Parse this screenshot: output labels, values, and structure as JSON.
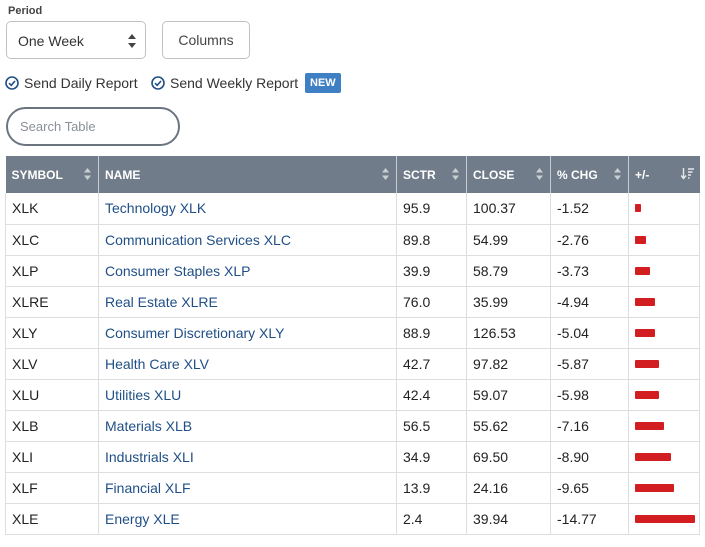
{
  "controls": {
    "period_label": "Period",
    "period_value": "One Week",
    "columns_label": "Columns",
    "send_daily_label": "Send Daily Report",
    "send_weekly_label": "Send Weekly Report",
    "new_badge": "NEW",
    "search_placeholder": "Search Table"
  },
  "colors": {
    "header_bg": "#707c89",
    "link": "#1f4f86",
    "bar": "#d31e21",
    "badge": "#3f7fc4"
  },
  "table": {
    "headers": {
      "symbol": "SYMBOL",
      "name": "NAME",
      "sctr": "SCTR",
      "close": "CLOSE",
      "pct_chg": "% CHG",
      "plus_minus": "+/-"
    },
    "rows": [
      {
        "symbol": "XLK",
        "name": "Technology XLK",
        "sctr": "95.9",
        "close": "100.37",
        "pct_chg": "-1.52",
        "change": -1.52
      },
      {
        "symbol": "XLC",
        "name": "Communication Services XLC",
        "sctr": "89.8",
        "close": "54.99",
        "pct_chg": "-2.76",
        "change": -2.76
      },
      {
        "symbol": "XLP",
        "name": "Consumer Staples XLP",
        "sctr": "39.9",
        "close": "58.79",
        "pct_chg": "-3.73",
        "change": -3.73
      },
      {
        "symbol": "XLRE",
        "name": "Real Estate XLRE",
        "sctr": "76.0",
        "close": "35.99",
        "pct_chg": "-4.94",
        "change": -4.94
      },
      {
        "symbol": "XLY",
        "name": "Consumer Discretionary XLY",
        "sctr": "88.9",
        "close": "126.53",
        "pct_chg": "-5.04",
        "change": -5.04
      },
      {
        "symbol": "XLV",
        "name": "Health Care XLV",
        "sctr": "42.7",
        "close": "97.82",
        "pct_chg": "-5.87",
        "change": -5.87
      },
      {
        "symbol": "XLU",
        "name": "Utilities XLU",
        "sctr": "42.4",
        "close": "59.07",
        "pct_chg": "-5.98",
        "change": -5.98
      },
      {
        "symbol": "XLB",
        "name": "Materials XLB",
        "sctr": "56.5",
        "close": "55.62",
        "pct_chg": "-7.16",
        "change": -7.16
      },
      {
        "symbol": "XLI",
        "name": "Industrials XLI",
        "sctr": "34.9",
        "close": "69.50",
        "pct_chg": "-8.90",
        "change": -8.9
      },
      {
        "symbol": "XLF",
        "name": "Financial XLF",
        "sctr": "13.9",
        "close": "24.16",
        "pct_chg": "-9.65",
        "change": -9.65
      },
      {
        "symbol": "XLE",
        "name": "Energy XLE",
        "sctr": "2.4",
        "close": "39.94",
        "pct_chg": "-14.77",
        "change": -14.77
      }
    ]
  }
}
